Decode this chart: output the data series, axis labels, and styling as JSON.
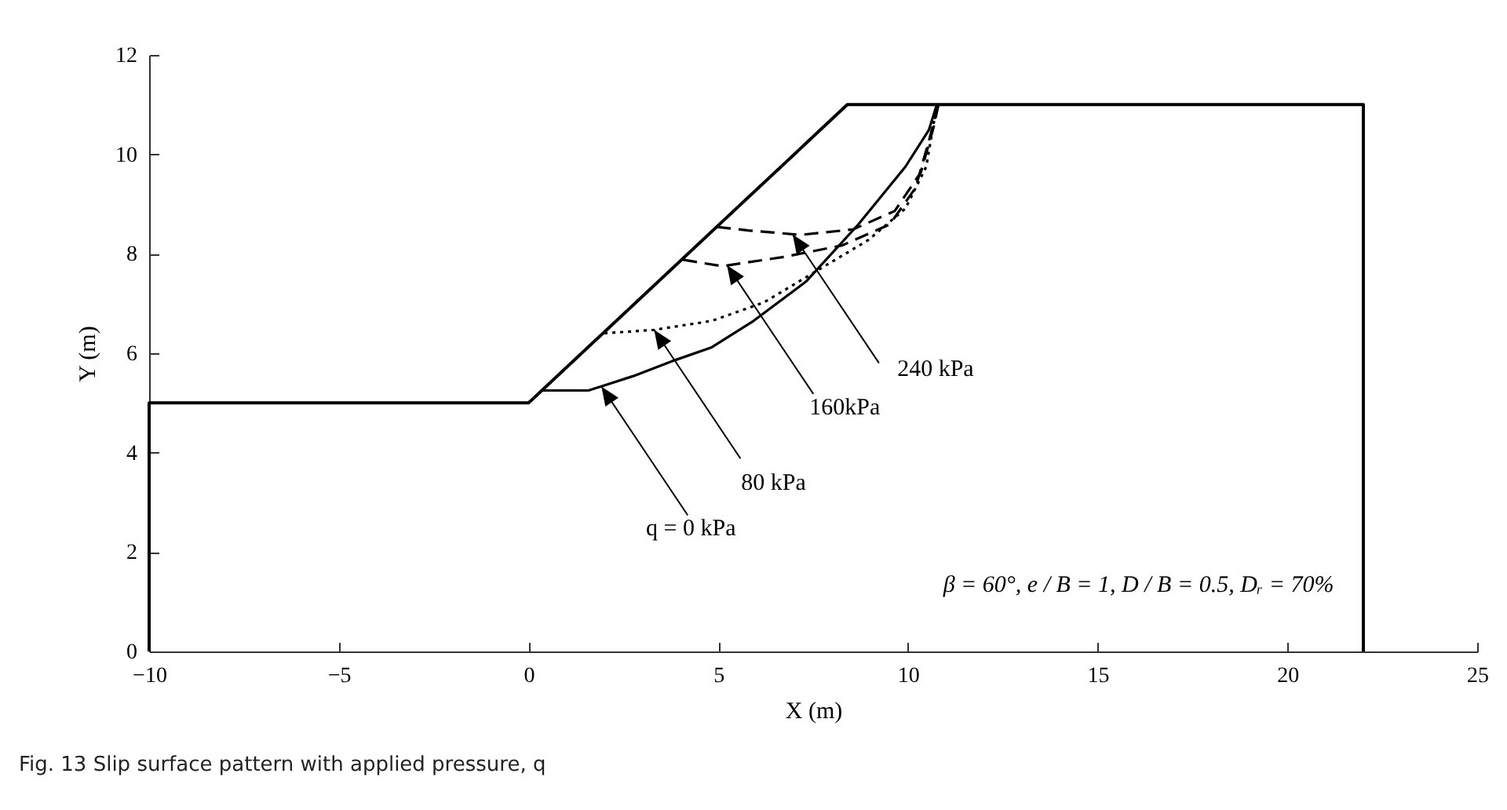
{
  "chart_data": {
    "type": "line",
    "title": "Fig. 13  Slip surface pattern with applied pressure, q",
    "xlabel": "X (m)",
    "ylabel": "Y (m)",
    "xlim": [
      -10,
      25
    ],
    "xticks": [
      -10,
      -5,
      0,
      5,
      10,
      15,
      20,
      25
    ],
    "ylim": [
      0,
      12
    ],
    "yticks": [
      0,
      2,
      4,
      6,
      8,
      10,
      12
    ],
    "grid": false,
    "marker": "none",
    "series": [
      {
        "color": "#000000",
        "line_style": "solid",
        "x": [
          -10,
          -10,
          0,
          8.4,
          22,
          22
        ],
        "values": [
          0,
          5,
          5,
          11,
          11,
          0
        ]
      },
      {
        "color": "#000000",
        "line_style": "solid",
        "x": [
          0.34,
          1.58,
          2.76,
          3.86,
          4.83,
          5.93,
          7.31,
          8.69,
          9.93,
          10.55,
          10.76
        ],
        "values": [
          5.25,
          5.25,
          5.54,
          5.86,
          6.12,
          6.65,
          7.44,
          8.59,
          9.75,
          10.49,
          11.0
        ]
      },
      {
        "color": "#000000",
        "line_style": "dotted",
        "x": [
          2.0,
          3.31,
          4.83,
          6.2,
          7.58,
          8.96,
          9.93,
          10.48,
          10.76
        ],
        "values": [
          6.4,
          6.47,
          6.65,
          7.02,
          7.65,
          8.28,
          8.91,
          9.75,
          11.0
        ]
      },
      {
        "color": "#000000",
        "line_style": "dashed",
        "x": [
          4.07,
          5.1,
          6.75,
          8.27,
          9.52,
          10.2,
          10.55,
          10.8
        ],
        "values": [
          7.88,
          7.75,
          7.94,
          8.17,
          8.59,
          9.33,
          10.27,
          11.0
        ]
      },
      {
        "color": "#000000",
        "line_style": "dashed",
        "x": [
          4.96,
          5.79,
          7.17,
          8.55,
          9.65,
          10.34,
          10.69,
          10.8
        ],
        "values": [
          8.54,
          8.47,
          8.38,
          8.49,
          8.86,
          9.64,
          10.59,
          11.0
        ]
      }
    ],
    "annotations": [
      {
        "text": "q = 0 kPa",
        "x": 1.92,
        "y": 5.33
      },
      {
        "text": "80 kPa",
        "x": 3.31,
        "y": 6.47
      },
      {
        "text": "160kPa",
        "x": 5.23,
        "y": 7.77
      },
      {
        "text": "240 kPa",
        "x": 6.96,
        "y": 8.39
      },
      "β = 60°,  e / B = 1, D / B = 0.5, Dᵣ = 70%"
    ]
  }
}
